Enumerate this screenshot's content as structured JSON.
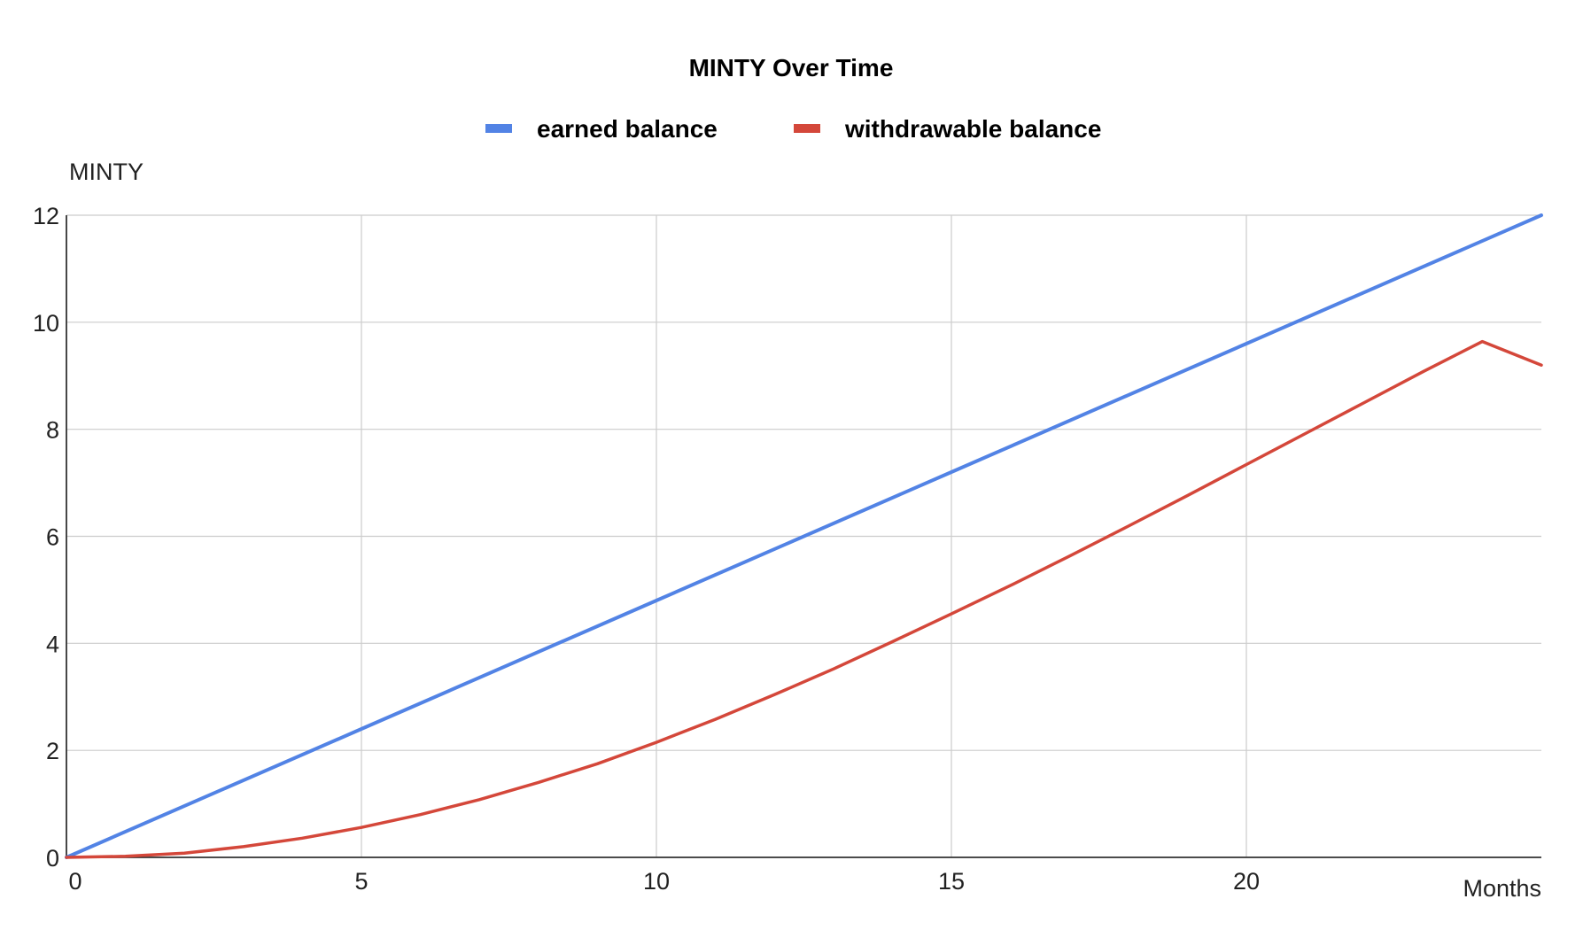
{
  "chart_data": {
    "type": "line",
    "title": "MINTY Over Time",
    "xlabel": "Months",
    "ylabel": "MINTY",
    "xlim": [
      0,
      25
    ],
    "ylim": [
      0,
      12
    ],
    "x_ticks": [
      "0",
      "5",
      "10",
      "15",
      "20"
    ],
    "y_ticks": [
      "0",
      "2",
      "4",
      "6",
      "8",
      "10",
      "12"
    ],
    "grid": true,
    "legend_position": "top",
    "series": [
      {
        "name": "earned balance",
        "color": "#5283e5",
        "x": [
          0,
          5,
          10,
          15,
          20,
          25
        ],
        "values": [
          0,
          2.4,
          4.8,
          7.2,
          9.6,
          12
        ]
      },
      {
        "name": "withdrawable balance",
        "color": "#d4473a",
        "x": [
          0,
          1,
          2,
          3,
          4,
          5,
          6,
          7,
          8,
          9,
          10,
          11,
          12,
          13,
          14,
          15,
          16,
          17,
          18,
          19,
          20,
          21,
          22,
          23,
          24,
          25
        ],
        "values": [
          0,
          0.02,
          0.08,
          0.2,
          0.36,
          0.56,
          0.8,
          1.08,
          1.4,
          1.75,
          2.15,
          2.58,
          3.04,
          3.52,
          4.03,
          4.55,
          5.08,
          5.63,
          6.19,
          6.76,
          7.34,
          7.92,
          8.5,
          9.08,
          9.64,
          9.2
        ]
      }
    ]
  }
}
